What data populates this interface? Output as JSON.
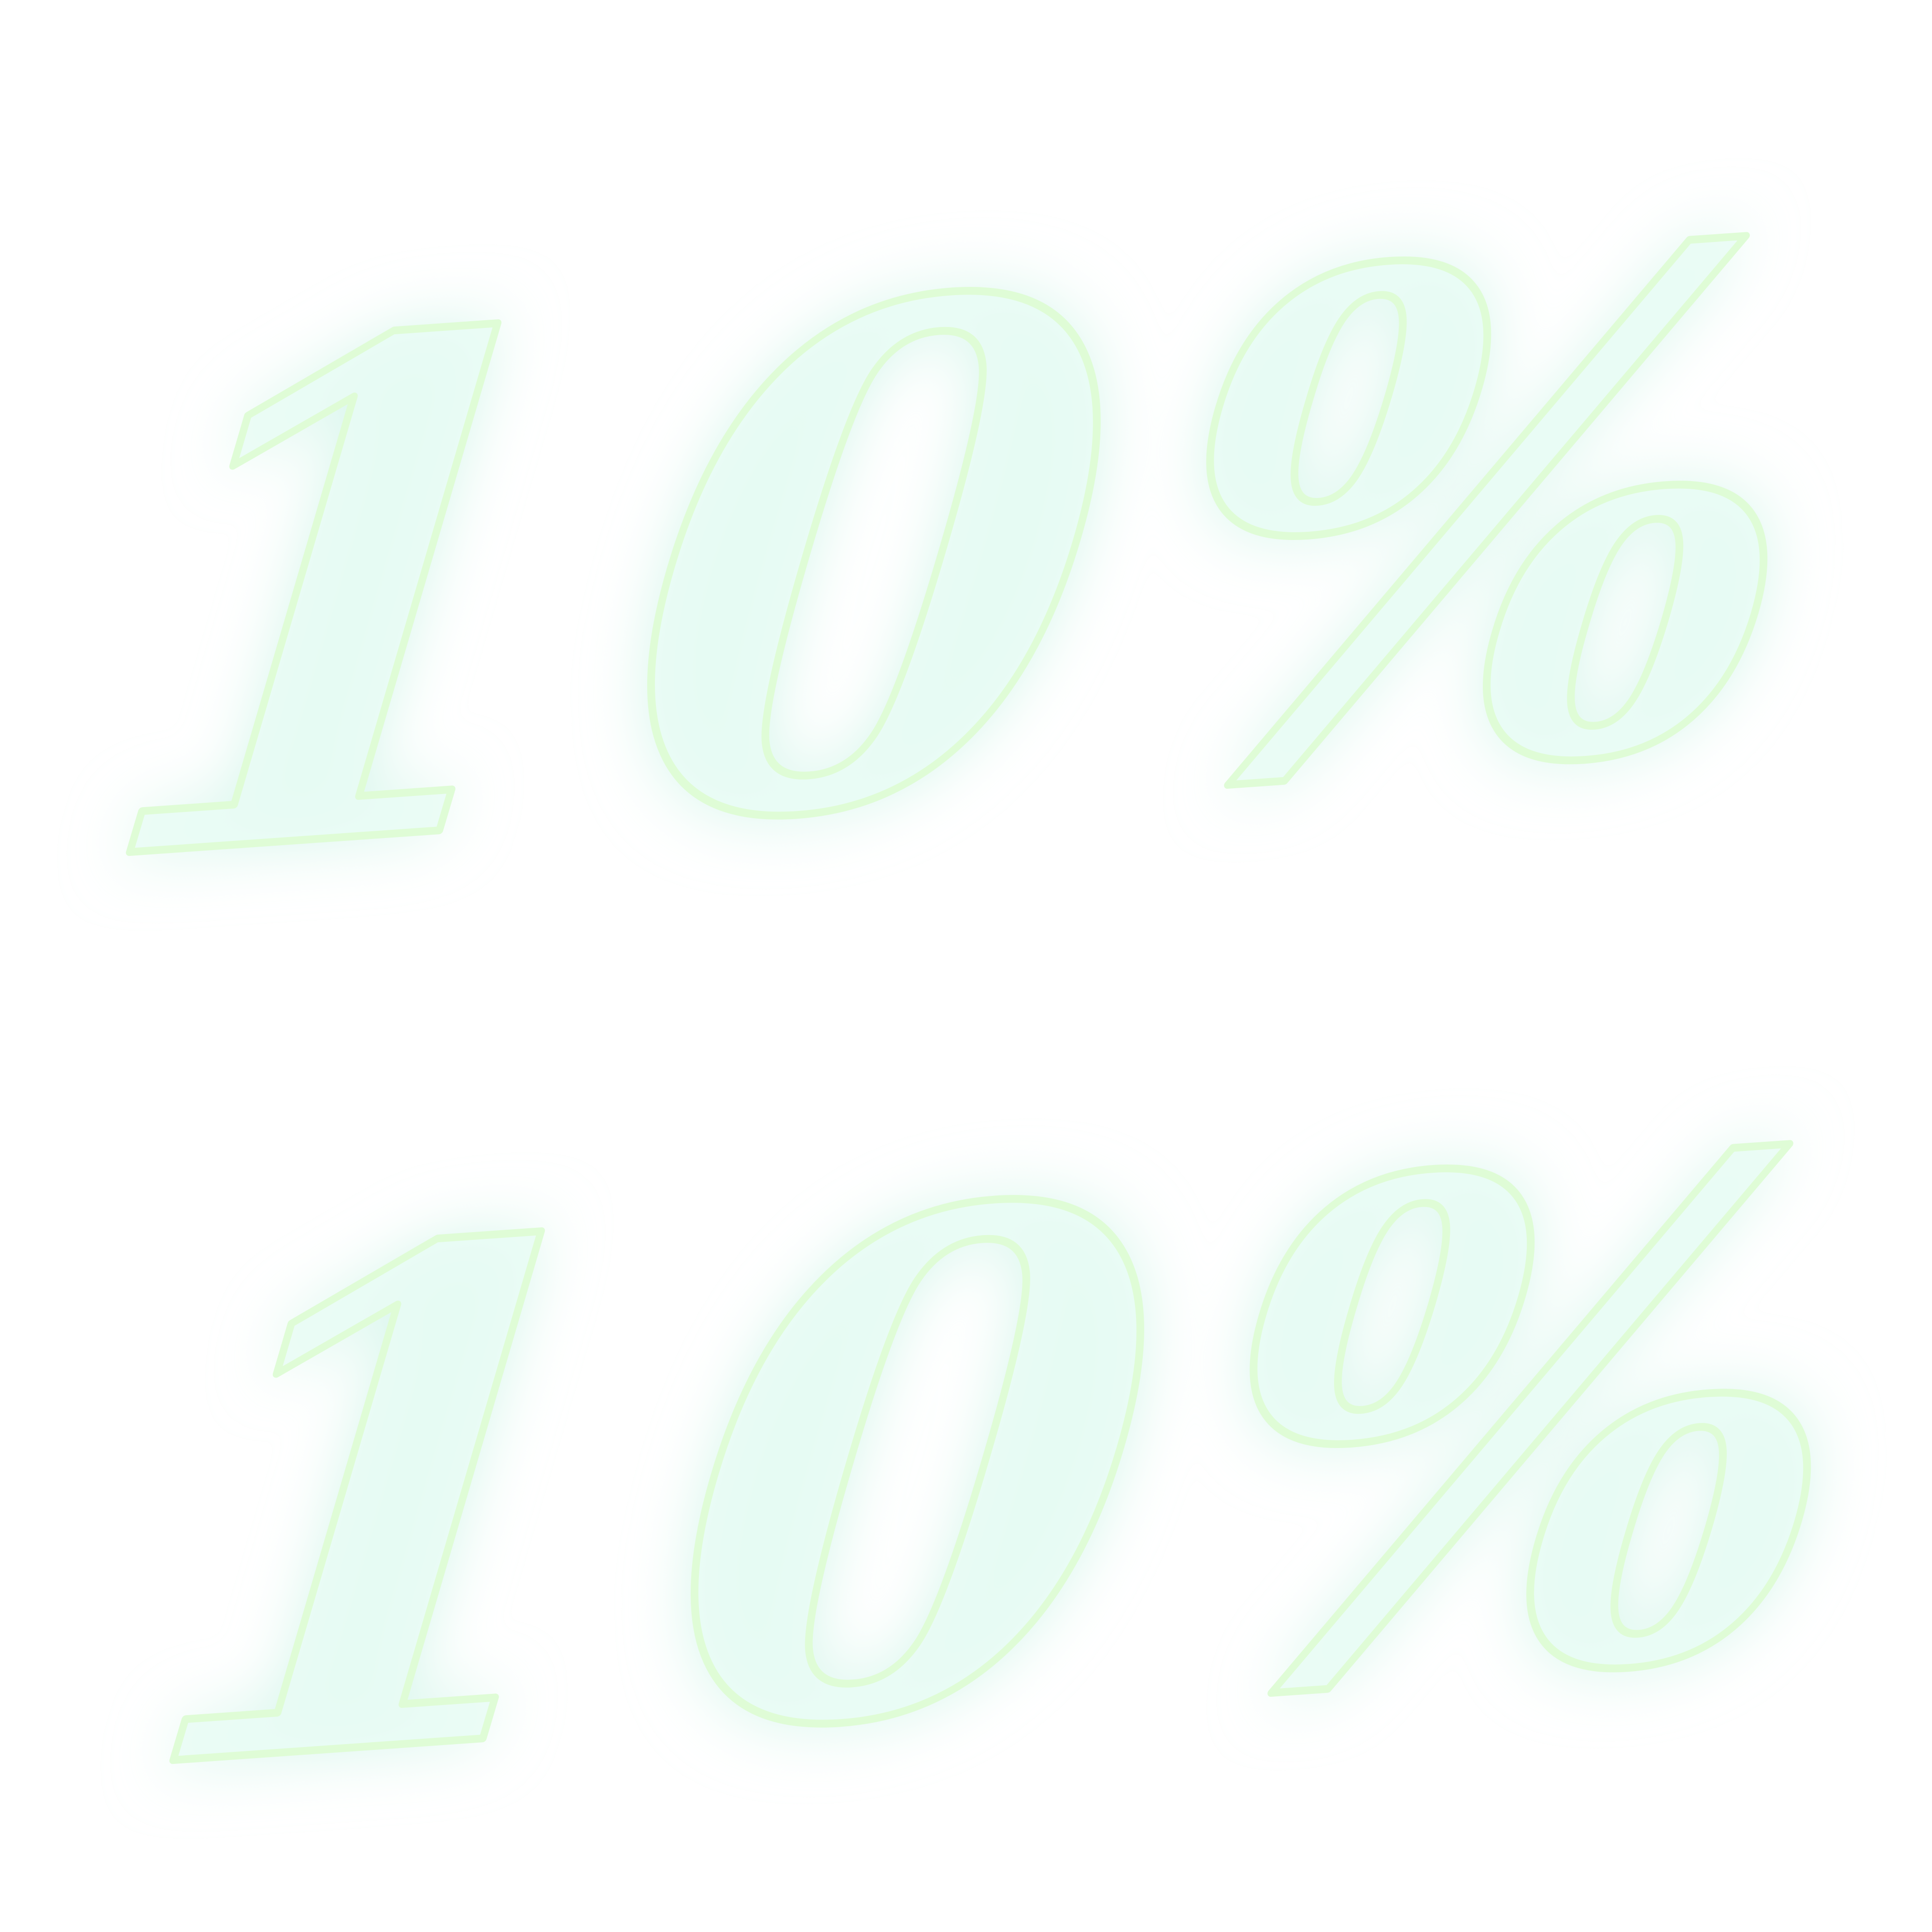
{
  "banner": {
    "upper_text": "10%",
    "lower_text": "10%"
  },
  "colors": {
    "glow": "#d4f5ea",
    "fill": "#e9fbf4",
    "outline": "#dffcd6",
    "background": "#ffffff"
  }
}
